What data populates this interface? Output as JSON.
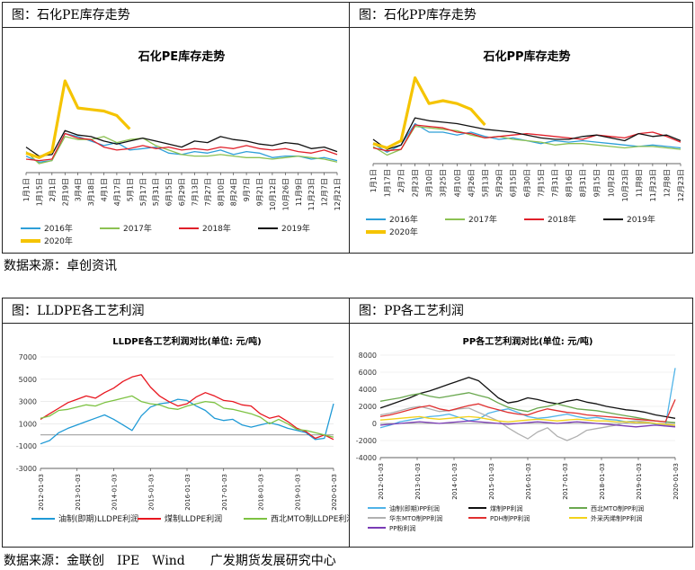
{
  "panels": [
    {
      "header": "图：石化PE库存走势"
    },
    {
      "header": "图：石化PP库存走势"
    },
    {
      "header": "图：LLDPE各工艺利润"
    },
    {
      "header": "图：PP各工艺利润"
    }
  ],
  "sources": {
    "top": "数据来源：卓创资讯",
    "bottom": "数据来源：金联创　IPE　Wind　　广发期货发展研究中心"
  },
  "chart_data": [
    {
      "type": "line",
      "title": "石化PE库存走势",
      "x": [
        "1月1日",
        "1月15日",
        "2月1日",
        "2月19日",
        "3月4日",
        "3月18日",
        "4月1日",
        "4月17日",
        "5月1日",
        "5月17日",
        "5月31日",
        "6月15日",
        "6月29日",
        "7月13日",
        "7月27日",
        "8月10日",
        "8月24日",
        "9月7日",
        "9月21日",
        "10月12日",
        "10月26日",
        "11月9日",
        "11月23日",
        "12月7日",
        "12月21日"
      ],
      "series": [
        {
          "name": "2016年",
          "color": "#2e9fd8",
          "values": [
            30,
            26,
            27,
            45,
            43,
            40,
            37,
            39,
            34,
            35,
            36,
            32,
            31,
            33,
            32,
            34,
            31,
            33,
            32,
            29,
            30,
            30,
            28,
            29,
            27
          ]
        },
        {
          "name": "2017年",
          "color": "#8cc152",
          "values": [
            33,
            25,
            27,
            43,
            41,
            41,
            43,
            39,
            41,
            42,
            37,
            34,
            31,
            30,
            30,
            31,
            30,
            29,
            29,
            28,
            29,
            30,
            29,
            28,
            26
          ]
        },
        {
          "name": "2018年",
          "color": "#e0202a",
          "values": [
            28,
            27,
            28,
            45,
            42,
            41,
            36,
            34,
            35,
            37,
            35,
            36,
            34,
            35,
            34,
            36,
            35,
            37,
            35,
            34,
            35,
            33,
            32,
            34,
            31
          ]
        },
        {
          "name": "2019年",
          "color": "#111111",
          "values": [
            36,
            30,
            31,
            47,
            44,
            43,
            40,
            38,
            40,
            42,
            40,
            38,
            36,
            40,
            39,
            43,
            41,
            40,
            38,
            37,
            39,
            38,
            35,
            36,
            33
          ]
        },
        {
          "name": "2020年",
          "color": "#f5c400",
          "values": [
            32,
            29,
            33,
            80,
            62,
            61,
            60,
            57,
            48,
            null,
            null,
            null,
            null,
            null,
            null,
            null,
            null,
            null,
            null,
            null,
            null,
            null,
            null,
            null,
            null
          ]
        }
      ]
    },
    {
      "type": "line",
      "title": "石化PP库存走势",
      "x": [
        "1月1日",
        "1月17日",
        "2月7日",
        "2月23日",
        "3月10日",
        "3月25日",
        "4月10日",
        "4月26日",
        "5月13日",
        "5月29日",
        "6月15日",
        "6月30日",
        "7月15日",
        "7月31日",
        "8月16日",
        "8月31日",
        "9月15日",
        "10月2日",
        "10月23日",
        "11月8日",
        "11月23日",
        "12月8日",
        "12月23日"
      ],
      "series": [
        {
          "name": "2016年",
          "color": "#2e9fd8",
          "values": [
            32,
            26,
            31,
            46,
            40,
            40,
            38,
            40,
            37,
            35,
            36,
            34,
            32,
            34,
            33,
            34,
            33,
            32,
            31,
            30,
            31,
            30,
            29
          ]
        },
        {
          "name": "2017年",
          "color": "#8cc152",
          "values": [
            30,
            24,
            28,
            44,
            43,
            42,
            41,
            38,
            36,
            37,
            35,
            34,
            33,
            31,
            32,
            32,
            31,
            30,
            29,
            30,
            30,
            29,
            28
          ]
        },
        {
          "name": "2018年",
          "color": "#e0202a",
          "values": [
            29,
            27,
            28,
            45,
            44,
            43,
            40,
            39,
            36,
            37,
            38,
            39,
            38,
            37,
            36,
            35,
            38,
            37,
            36,
            39,
            40,
            37,
            33
          ]
        },
        {
          "name": "2019年",
          "color": "#111111",
          "values": [
            35,
            28,
            31,
            50,
            48,
            47,
            46,
            44,
            42,
            41,
            40,
            38,
            36,
            35,
            35,
            37,
            38,
            36,
            34,
            39,
            37,
            38,
            34
          ]
        },
        {
          "name": "2020年",
          "color": "#f5c400",
          "values": [
            32,
            29,
            34,
            78,
            60,
            62,
            60,
            56,
            45,
            null,
            null,
            null,
            null,
            null,
            null,
            null,
            null,
            null,
            null,
            null,
            null,
            null,
            null
          ]
        }
      ]
    },
    {
      "type": "line",
      "title": "LLDPE各工艺利润对比(单位: 元/吨)",
      "ylim": [
        -3000,
        7000
      ],
      "yticks": [
        -3000,
        -1000,
        1000,
        3000,
        5000,
        7000
      ],
      "xticks": [
        "2012-01-03",
        "2013-01-03",
        "2014-01-03",
        "2015-01-03",
        "2016-01-03",
        "2017-01-03",
        "2018-01-03",
        "2019-01-03",
        "2020-01-03"
      ],
      "series": [
        {
          "name": "油制(即期)LLDPE利润",
          "color": "#1f9ad6",
          "values": [
            -800,
            -500,
            200,
            600,
            900,
            1200,
            1500,
            1800,
            1400,
            900,
            400,
            1700,
            2500,
            2800,
            2900,
            3200,
            3100,
            2600,
            2200,
            1500,
            1300,
            1400,
            900,
            700,
            900,
            1100,
            900,
            600,
            400,
            200,
            -400,
            -300,
            2800
          ]
        },
        {
          "name": "煤制LLDPE利润",
          "color": "#e8161f",
          "values": [
            1400,
            1900,
            2400,
            2900,
            3200,
            3500,
            3300,
            3800,
            4200,
            4800,
            5200,
            5400,
            4300,
            3500,
            3000,
            2600,
            2800,
            3400,
            3800,
            3500,
            3100,
            3000,
            2700,
            2600,
            1900,
            1500,
            1700,
            1200,
            600,
            300,
            -300,
            0,
            -400
          ]
        },
        {
          "name": "西北MTO制LLDPE利润",
          "color": "#7dc242",
          "values": [
            1500,
            1700,
            2200,
            2300,
            2500,
            2700,
            2600,
            2900,
            3100,
            3300,
            3500,
            3000,
            2800,
            2700,
            2400,
            2300,
            2600,
            2800,
            3000,
            2900,
            2400,
            2300,
            2100,
            1900,
            1600,
            1000,
            1400,
            1000,
            500,
            400,
            200,
            0,
            -200
          ]
        }
      ]
    },
    {
      "type": "line",
      "title": "PP各工艺利润对比(单位: 元/吨)",
      "ylim": [
        -4000,
        8000
      ],
      "yticks": [
        -4000,
        -2000,
        0,
        2000,
        4000,
        6000,
        8000
      ],
      "xticks": [
        "2012-01-03",
        "2013-01-03",
        "2014-01-03",
        "2015-01-03",
        "2016-01-03",
        "2017-01-03",
        "2018-01-03",
        "2019-01-03",
        "2020-01-03"
      ],
      "series": [
        {
          "name": "油制(即期)PP利润",
          "color": "#4fb3e8",
          "values": [
            -500,
            -200,
            200,
            400,
            600,
            800,
            900,
            1100,
            700,
            300,
            500,
            1200,
            1500,
            1700,
            1300,
            800,
            600,
            700,
            900,
            1100,
            800,
            600,
            700,
            500,
            400,
            200,
            300,
            100,
            -100,
            -300,
            6500
          ]
        },
        {
          "name": "煤制PP利润",
          "color": "#111111",
          "values": [
            1800,
            2200,
            2600,
            3000,
            3500,
            3800,
            4200,
            4600,
            5000,
            5400,
            5000,
            4000,
            3000,
            2400,
            2600,
            3000,
            2800,
            2500,
            2300,
            2600,
            2800,
            2500,
            2300,
            2000,
            1800,
            1600,
            1500,
            1300,
            1000,
            800,
            600
          ]
        },
        {
          "name": "西北MTO制PP利润",
          "color": "#6aa84f",
          "values": [
            2600,
            2800,
            3000,
            3300,
            3500,
            3200,
            3000,
            3200,
            3400,
            3600,
            3300,
            3000,
            2400,
            1900,
            1600,
            1400,
            1800,
            2000,
            2300,
            2000,
            1700,
            1600,
            1500,
            1300,
            1100,
            900,
            700,
            500,
            300,
            200,
            100
          ]
        },
        {
          "name": "华东MTO制PP利润",
          "color": "#b0b0b0",
          "values": [
            1000,
            1200,
            1500,
            1800,
            2000,
            1700,
            1400,
            1500,
            1700,
            1800,
            1300,
            800,
            300,
            -500,
            -1200,
            -1800,
            -1000,
            -500,
            -1500,
            -2000,
            -1500,
            -800,
            -600,
            -400,
            -200,
            100,
            300,
            200,
            0,
            -200,
            -300
          ]
        },
        {
          "name": "PDH制PP利润",
          "color": "#e03030",
          "values": [
            800,
            1000,
            1300,
            1600,
            1900,
            2100,
            1700,
            1500,
            1800,
            2100,
            2300,
            1900,
            1600,
            1300,
            1100,
            1000,
            1400,
            1700,
            1500,
            1300,
            1200,
            1000,
            900,
            800,
            700,
            600,
            500,
            400,
            300,
            200,
            2800
          ]
        },
        {
          "name": "外采丙烯制PP利润",
          "color": "#f2d21b",
          "values": [
            400,
            500,
            600,
            700,
            800,
            600,
            500,
            600,
            700,
            800,
            700,
            500,
            300,
            200,
            300,
            400,
            500,
            400,
            300,
            400,
            500,
            400,
            300,
            300,
            200,
            200,
            100,
            100,
            0,
            -100,
            -200
          ]
        },
        {
          "name": "PP粉利润",
          "color": "#7a3bb5",
          "values": [
            -200,
            -100,
            0,
            100,
            200,
            100,
            0,
            100,
            200,
            300,
            200,
            100,
            0,
            -100,
            0,
            100,
            200,
            100,
            0,
            100,
            200,
            100,
            0,
            -100,
            -200,
            -300,
            -400,
            -300,
            -200,
            -300,
            -400
          ]
        }
      ]
    }
  ]
}
